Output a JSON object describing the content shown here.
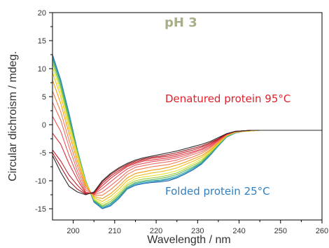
{
  "chart_data": {
    "type": "line",
    "title": "",
    "xlabel": "Wavelength / nm",
    "ylabel": "Circular dichroism / mdeg.",
    "xlim": [
      195,
      260
    ],
    "ylim": [
      -17,
      20
    ],
    "x_ticks": [
      200,
      210,
      220,
      230,
      240,
      250,
      260
    ],
    "y_ticks": [
      20,
      15,
      10,
      5,
      0,
      -5,
      -10,
      -15
    ],
    "grid": false,
    "annotations": {
      "ph_label": "pH 3",
      "ph_color": "#a8ad8a",
      "denatured_label": "Denatured protein 95°C",
      "denatured_color": "#e0202a",
      "folded_label": "Folded protein 25°C",
      "folded_color": "#2f7fc1"
    },
    "x": [
      195,
      197,
      199,
      201,
      203,
      205,
      207,
      209,
      211,
      213,
      215,
      217,
      219,
      221,
      223,
      225,
      227,
      229,
      231,
      233,
      235,
      237,
      239,
      241,
      243,
      245,
      247,
      250,
      255,
      260
    ],
    "series": [
      {
        "color": "#1f5fa6",
        "values": [
          12.5,
          8.0,
          2.0,
          -4.5,
          -10.0,
          -13.8,
          -15.0,
          -14.5,
          -13.2,
          -11.5,
          -10.8,
          -10.5,
          -10.3,
          -10.2,
          -10.0,
          -9.5,
          -8.8,
          -8.0,
          -7.0,
          -5.5,
          -3.8,
          -2.2,
          -1.5,
          -1.2,
          -1.1,
          -1.0,
          -1.0,
          -1.0,
          -1.0,
          -1.0
        ]
      },
      {
        "color": "#3a9bd0",
        "values": [
          12.2,
          7.8,
          1.8,
          -4.5,
          -10.0,
          -13.7,
          -14.9,
          -14.4,
          -13.1,
          -11.4,
          -10.7,
          -10.4,
          -10.2,
          -10.0,
          -9.8,
          -9.4,
          -8.7,
          -7.9,
          -6.9,
          -5.4,
          -3.8,
          -2.2,
          -1.5,
          -1.2,
          -1.1,
          -1.0,
          -1.0,
          -1.0,
          -1.0,
          -1.0
        ]
      },
      {
        "color": "#2aa198",
        "values": [
          12.0,
          7.5,
          1.5,
          -4.6,
          -10.0,
          -13.6,
          -14.8,
          -14.2,
          -12.9,
          -11.3,
          -10.5,
          -10.2,
          -10.0,
          -9.9,
          -9.6,
          -9.2,
          -8.5,
          -7.7,
          -6.8,
          -5.3,
          -3.7,
          -2.1,
          -1.5,
          -1.2,
          -1.1,
          -1.0,
          -1.0,
          -1.0,
          -1.0,
          -1.0
        ]
      },
      {
        "color": "#5cb85c",
        "values": [
          11.6,
          7.0,
          1.0,
          -4.8,
          -10.1,
          -13.5,
          -14.6,
          -14.0,
          -12.7,
          -11.1,
          -10.3,
          -10.0,
          -9.8,
          -9.6,
          -9.3,
          -8.9,
          -8.2,
          -7.5,
          -6.6,
          -5.2,
          -3.6,
          -2.1,
          -1.4,
          -1.2,
          -1.1,
          -1.0,
          -1.0,
          -1.0,
          -1.0,
          -1.0
        ]
      },
      {
        "color": "#9acd32",
        "values": [
          11.0,
          6.5,
          0.5,
          -5.0,
          -10.2,
          -13.4,
          -14.4,
          -13.7,
          -12.4,
          -10.8,
          -10.0,
          -9.7,
          -9.5,
          -9.3,
          -9.0,
          -8.6,
          -7.9,
          -7.2,
          -6.4,
          -5.0,
          -3.5,
          -2.0,
          -1.4,
          -1.2,
          -1.1,
          -1.0,
          -1.0,
          -1.0,
          -1.0,
          -1.0
        ]
      },
      {
        "color": "#e8e23a",
        "values": [
          10.3,
          5.8,
          0.0,
          -5.3,
          -10.3,
          -13.2,
          -14.1,
          -13.3,
          -12.0,
          -10.5,
          -9.6,
          -9.3,
          -9.1,
          -8.9,
          -8.6,
          -8.2,
          -7.6,
          -6.9,
          -6.1,
          -4.9,
          -3.4,
          -2.0,
          -1.4,
          -1.2,
          -1.1,
          -1.0,
          -1.0,
          -1.0,
          -1.0,
          -1.0
        ]
      },
      {
        "color": "#f0c020",
        "values": [
          9.3,
          5.0,
          -0.7,
          -5.8,
          -10.5,
          -13.0,
          -13.7,
          -12.8,
          -11.5,
          -10.0,
          -9.2,
          -8.9,
          -8.6,
          -8.4,
          -8.1,
          -7.7,
          -7.1,
          -6.5,
          -5.8,
          -4.7,
          -3.3,
          -1.9,
          -1.3,
          -1.2,
          -1.1,
          -1.0,
          -1.0,
          -1.0,
          -1.0,
          -1.0
        ]
      },
      {
        "color": "#f39c12",
        "values": [
          8.0,
          3.8,
          -1.6,
          -6.5,
          -10.8,
          -12.8,
          -13.2,
          -12.3,
          -11.0,
          -9.5,
          -8.7,
          -8.4,
          -8.1,
          -7.9,
          -7.6,
          -7.2,
          -6.7,
          -6.1,
          -5.5,
          -4.5,
          -3.2,
          -1.9,
          -1.3,
          -1.1,
          -1.0,
          -1.0,
          -1.0,
          -1.0,
          -1.0,
          -1.0
        ]
      },
      {
        "color": "#f37b4b",
        "values": [
          6.0,
          2.3,
          -2.8,
          -7.3,
          -11.2,
          -12.6,
          -12.6,
          -11.6,
          -10.3,
          -8.9,
          -8.1,
          -7.8,
          -7.5,
          -7.3,
          -7.1,
          -6.7,
          -6.2,
          -5.7,
          -5.1,
          -4.2,
          -3.0,
          -1.8,
          -1.3,
          -1.1,
          -1.0,
          -1.0,
          -1.0,
          -1.0,
          -1.0,
          -1.0
        ]
      },
      {
        "color": "#ef6b5f",
        "values": [
          4.0,
          0.8,
          -4.0,
          -8.2,
          -11.6,
          -12.5,
          -12.0,
          -10.9,
          -9.7,
          -8.4,
          -7.6,
          -7.3,
          -7.0,
          -6.8,
          -6.6,
          -6.3,
          -5.8,
          -5.3,
          -4.8,
          -4.0,
          -2.9,
          -1.8,
          -1.3,
          -1.1,
          -1.0,
          -1.0,
          -1.0,
          -1.0,
          -1.0,
          -1.0
        ]
      },
      {
        "color": "#e8505b",
        "values": [
          1.5,
          -1.2,
          -5.5,
          -9.0,
          -12.0,
          -12.4,
          -11.4,
          -10.2,
          -9.0,
          -7.9,
          -7.2,
          -6.9,
          -6.6,
          -6.4,
          -6.2,
          -5.9,
          -5.5,
          -5.0,
          -4.5,
          -3.8,
          -2.8,
          -1.7,
          -1.2,
          -1.1,
          -1.0,
          -1.0,
          -1.0,
          -1.0,
          -1.0,
          -1.0
        ]
      },
      {
        "color": "#e0303a",
        "values": [
          -1.5,
          -3.5,
          -7.0,
          -9.8,
          -12.2,
          -12.3,
          -10.9,
          -9.6,
          -8.5,
          -7.5,
          -6.9,
          -6.5,
          -6.3,
          -6.1,
          -5.9,
          -5.6,
          -5.2,
          -4.8,
          -4.3,
          -3.6,
          -2.7,
          -1.7,
          -1.2,
          -1.1,
          -1.0,
          -1.0,
          -1.0,
          -1.0,
          -1.0,
          -1.0
        ]
      },
      {
        "color": "#c81e28",
        "values": [
          -4.5,
          -6.5,
          -9.0,
          -10.8,
          -12.3,
          -12.2,
          -10.5,
          -9.2,
          -8.2,
          -7.3,
          -6.7,
          -6.3,
          -6.0,
          -5.8,
          -5.6,
          -5.3,
          -4.9,
          -4.5,
          -4.0,
          -3.4,
          -2.6,
          -1.7,
          -1.2,
          -1.1,
          -1.0,
          -1.0,
          -1.0,
          -1.0,
          -1.0,
          -1.0
        ]
      },
      {
        "color": "#a01820",
        "values": [
          -5.0,
          -7.5,
          -10.0,
          -11.5,
          -12.4,
          -12.1,
          -10.2,
          -8.9,
          -7.9,
          -7.1,
          -6.5,
          -6.1,
          -5.8,
          -5.6,
          -5.3,
          -5.0,
          -4.6,
          -4.2,
          -3.8,
          -3.2,
          -2.5,
          -1.6,
          -1.2,
          -1.1,
          -1.0,
          -1.0,
          -1.0,
          -1.0,
          -1.0,
          -1.0
        ]
      },
      {
        "color": "#2b2b2b",
        "values": [
          -5.5,
          -8.5,
          -11.0,
          -12.0,
          -12.5,
          -12.0,
          -10.0,
          -8.7,
          -7.7,
          -6.9,
          -6.3,
          -5.9,
          -5.6,
          -5.3,
          -5.0,
          -4.7,
          -4.3,
          -3.9,
          -3.5,
          -3.0,
          -2.3,
          -1.6,
          -1.2,
          -1.1,
          -1.0,
          -1.0,
          -1.0,
          -1.0,
          -1.0,
          -1.0
        ]
      }
    ]
  }
}
